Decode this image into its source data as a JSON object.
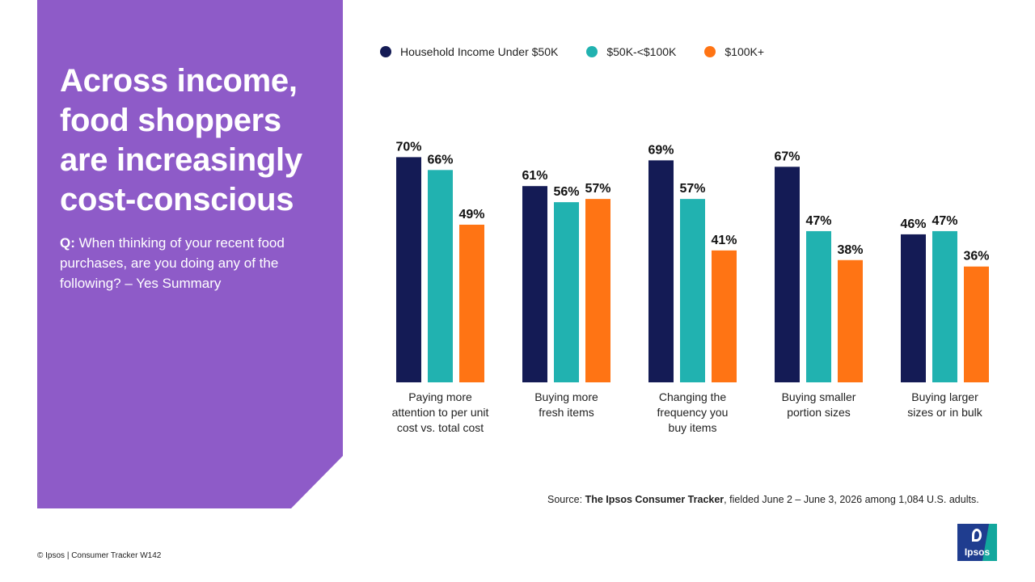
{
  "headline": "Across income, food shoppers are increasingly cost-conscious",
  "question": {
    "prefix": "Q:",
    "text": "When thinking of your recent food purchases, are you doing any of the following? – Yes Summary"
  },
  "legend": [
    {
      "label": "Household Income Under $50K",
      "color": "#141b55"
    },
    {
      "label": "$50K-<$100K",
      "color": "#21b2b0"
    },
    {
      "label": "$100K+",
      "color": "#ff7414"
    }
  ],
  "chart_data": {
    "type": "bar",
    "categories": [
      "Paying more attention to per unit cost vs. total cost",
      "Buying more fresh items",
      "Changing the frequency you buy items",
      "Buying smaller portion sizes",
      "Buying larger sizes or in bulk"
    ],
    "category_lines": [
      [
        "Paying more",
        "attention to per unit",
        "cost vs. total cost"
      ],
      [
        "Buying more",
        "fresh items"
      ],
      [
        "Changing the",
        "frequency you",
        "buy items"
      ],
      [
        "Buying smaller",
        "portion sizes"
      ],
      [
        "Buying larger",
        "sizes or in bulk"
      ]
    ],
    "series": [
      {
        "name": "Household Income Under $50K",
        "color": "#141b55",
        "values": [
          70,
          61,
          69,
          67,
          46
        ],
        "labels": [
          "70%",
          "61%",
          "69%",
          "67%",
          "46%"
        ]
      },
      {
        "name": "$50K-<$100K",
        "color": "#21b2b0",
        "values": [
          66,
          56,
          57,
          47,
          47
        ],
        "labels": [
          "66%",
          "56%",
          "57%",
          "47%",
          "47%"
        ]
      },
      {
        "name": "$100K+",
        "color": "#ff7414",
        "values": [
          49,
          57,
          41,
          38,
          36
        ],
        "labels": [
          "49%",
          "57%",
          "41%",
          "38%",
          "36%"
        ]
      }
    ],
    "ylim": [
      0,
      100
    ],
    "grid": false,
    "legend_position": "top"
  },
  "source": {
    "prefix": "Source:",
    "name": "The Ipsos Consumer Tracker",
    "rest": ", fielded June 2 – June 3, 2026 among 1,084 U.S. adults."
  },
  "footer": "© Ipsos | Consumer Tracker W142",
  "logo_text": "Ipsos"
}
